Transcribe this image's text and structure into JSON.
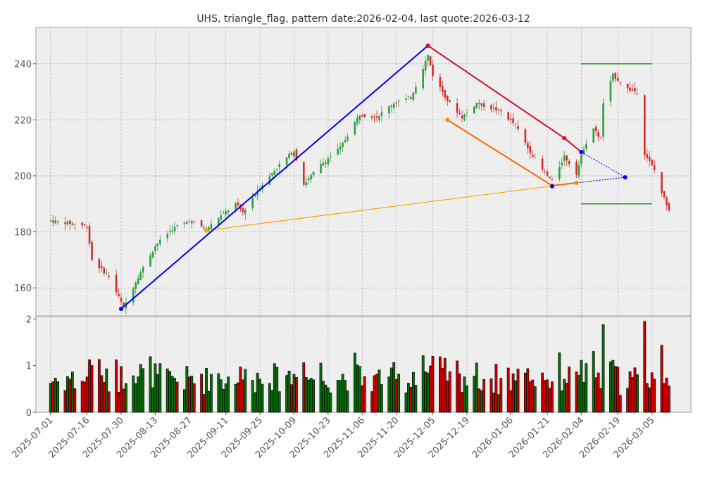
{
  "chart_data": {
    "type": "candlestick",
    "title": "UHS, triangle_flag, pattern date:2026-02-04, last quote:2026-03-12",
    "price_panel": {
      "ylim": [
        150,
        253
      ],
      "yticks": [
        160,
        180,
        200,
        220,
        240
      ],
      "grid": true
    },
    "volume_panel": {
      "ylim": [
        0,
        2.05
      ],
      "yticks": [
        0,
        1,
        2
      ],
      "unit_note": "volume in millions (unlabeled)"
    },
    "x_axis": {
      "type": "date",
      "range": [
        "2025-06-25",
        "2026-03-21"
      ],
      "tick_labels": [
        "2025-07-01",
        "2025-07-16",
        "2025-07-30",
        "2025-08-13",
        "2025-08-27",
        "2025-09-11",
        "2025-09-25",
        "2025-10-09",
        "2025-10-23",
        "2025-11-06",
        "2025-11-20",
        "2025-12-05",
        "2025-12-19",
        "2026-01-06",
        "2026-01-21",
        "2026-02-04",
        "2026-02-19",
        "2026-03-05"
      ]
    },
    "price_anchors": [
      [
        "2025-07-01",
        184
      ],
      [
        "2025-07-10",
        183
      ],
      [
        "2025-07-16",
        182
      ],
      [
        "2025-07-18",
        170
      ],
      [
        "2025-07-25",
        164
      ],
      [
        "2025-07-31",
        153
      ],
      [
        "2025-08-06",
        164
      ],
      [
        "2025-08-13",
        175
      ],
      [
        "2025-08-20",
        181
      ],
      [
        "2025-08-27",
        184
      ],
      [
        "2025-09-03",
        181
      ],
      [
        "2025-09-08",
        185
      ],
      [
        "2025-09-15",
        190
      ],
      [
        "2025-09-18",
        187
      ],
      [
        "2025-09-25",
        196
      ],
      [
        "2025-10-02",
        203
      ],
      [
        "2025-10-09",
        209
      ],
      [
        "2025-10-13",
        197
      ],
      [
        "2025-10-20",
        204
      ],
      [
        "2025-10-28",
        210
      ],
      [
        "2025-11-05",
        222
      ],
      [
        "2025-11-12",
        221
      ],
      [
        "2025-11-19",
        226
      ],
      [
        "2025-11-26",
        228
      ],
      [
        "2025-12-03",
        243
      ],
      [
        "2025-12-05",
        236
      ],
      [
        "2025-12-11",
        227
      ],
      [
        "2025-12-17",
        221
      ],
      [
        "2025-12-23",
        226
      ],
      [
        "2026-01-02",
        223
      ],
      [
        "2026-01-08",
        218
      ],
      [
        "2026-01-13",
        210
      ],
      [
        "2026-01-19",
        202
      ],
      [
        "2026-01-23",
        198
      ],
      [
        "2026-01-28",
        207
      ],
      [
        "2026-02-02",
        201
      ],
      [
        "2026-02-05",
        210
      ],
      [
        "2026-02-09",
        217
      ],
      [
        "2026-02-12",
        213
      ],
      [
        "2026-02-13",
        226
      ],
      [
        "2026-02-17",
        236
      ],
      [
        "2026-02-23",
        231
      ],
      [
        "2026-02-27",
        230
      ],
      [
        "2026-03-02",
        208
      ],
      [
        "2026-03-06",
        202
      ],
      [
        "2026-03-09",
        194
      ],
      [
        "2026-03-12",
        188
      ]
    ],
    "patterns": {
      "blue_trend_line": {
        "points": [
          [
            "2025-07-30",
            152.5
          ],
          [
            "2025-12-03",
            246.5
          ]
        ],
        "color": "#0000ee"
      },
      "red_upper_line": {
        "points": [
          [
            "2025-12-03",
            246.5
          ],
          [
            "2026-01-28",
            213.5
          ],
          [
            "2026-02-04",
            208.5
          ]
        ],
        "color": "#cc1133"
      },
      "orange_lower_line": {
        "points": [
          [
            "2025-12-11",
            220
          ],
          [
            "2026-01-23",
            196.5
          ],
          [
            "2026-02-02",
            197.5
          ]
        ],
        "color": "#ff6600"
      },
      "blue_pivot_point": {
        "points": [
          [
            "2026-01-23",
            196.3
          ]
        ],
        "color": "#0000ee"
      },
      "thin_orange_line": {
        "points": [
          [
            "2025-09-03",
            180.5
          ],
          [
            "2026-02-02",
            197.5
          ]
        ],
        "color": "#ffa500"
      },
      "blue_dotted_projection": {
        "points": [
          [
            "2026-02-04",
            208.5
          ],
          [
            "2026-02-22",
            199.5
          ]
        ],
        "color": "#0000ee"
      },
      "blue_dotted_projection_2": {
        "points": [
          [
            "2026-02-02",
            197.5
          ],
          [
            "2026-02-22",
            199.5
          ]
        ],
        "color": "#0000ee"
      },
      "green_target_high": {
        "points": [
          [
            "2026-02-04",
            240
          ],
          [
            "2026-03-05",
            240
          ]
        ],
        "color": "#008000"
      },
      "green_target_low": {
        "points": [
          [
            "2026-02-04",
            190
          ],
          [
            "2026-03-05",
            190
          ]
        ],
        "color": "#008000"
      }
    }
  }
}
